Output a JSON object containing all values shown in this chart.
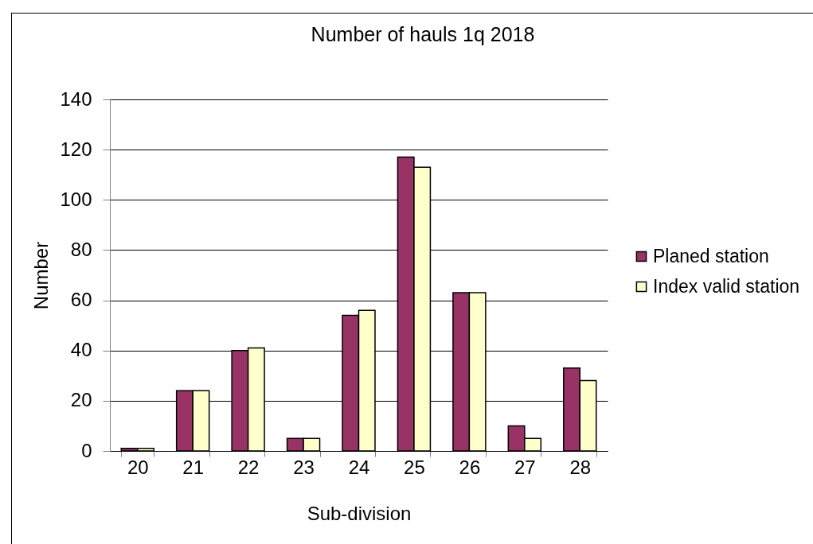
{
  "chart_data": {
    "type": "bar",
    "title": "Number of hauls 1q 2018",
    "xlabel": "Sub-division",
    "ylabel": "Number",
    "categories": [
      "20",
      "21",
      "22",
      "23",
      "24",
      "25",
      "26",
      "27",
      "28"
    ],
    "series": [
      {
        "name": "Planed station",
        "color": "#993366",
        "values": [
          1,
          24,
          40,
          5,
          54,
          117,
          63,
          10,
          33
        ]
      },
      {
        "name": "Index valid station",
        "color": "#ffffcc",
        "values": [
          1,
          24,
          41,
          5,
          56,
          113,
          63,
          5,
          28
        ]
      }
    ],
    "ylim": [
      0,
      140
    ],
    "yticks": [
      0,
      20,
      40,
      60,
      80,
      100,
      120,
      140
    ],
    "grid": "y",
    "legend": "right"
  }
}
